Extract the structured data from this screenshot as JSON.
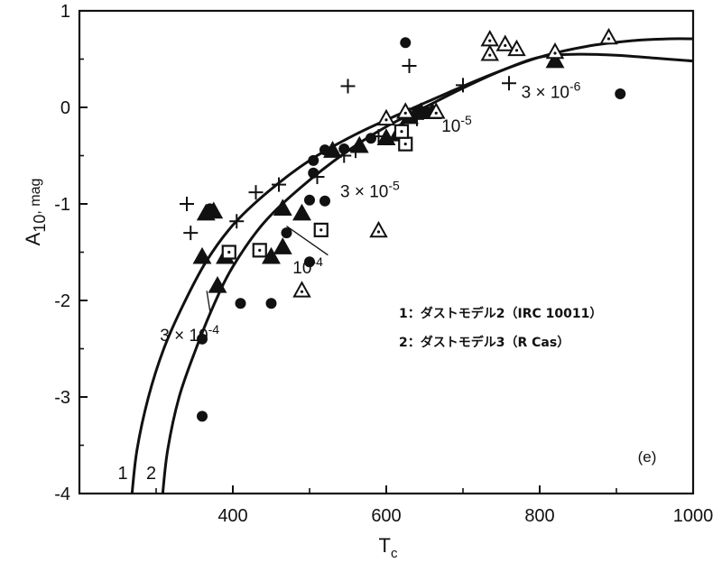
{
  "chart_data": {
    "type": "scatter",
    "panel_label": "(e)",
    "xlabel": {
      "main": "T",
      "sub": "c"
    },
    "ylabel": {
      "main": "A",
      "sub": "10",
      "unit": ", mag"
    },
    "xlim": [
      200,
      1000
    ],
    "ylim": [
      -4,
      1
    ],
    "x_ticks": [
      {
        "value": 400,
        "label": "400"
      },
      {
        "value": 600,
        "label": "600"
      },
      {
        "value": 800,
        "label": "800"
      },
      {
        "value": 1000,
        "label": "1000"
      }
    ],
    "y_ticks": [
      {
        "value": 1,
        "label": "1"
      },
      {
        "value": 0,
        "label": "0"
      },
      {
        "value": -1,
        "label": "-1"
      },
      {
        "value": -2,
        "label": "-2"
      },
      {
        "value": -3,
        "label": "-3"
      },
      {
        "value": -4,
        "label": "-4"
      }
    ],
    "curves": [
      {
        "label": "1",
        "points": [
          [
            268,
            -4.05
          ],
          [
            275,
            -3.55
          ],
          [
            290,
            -3.0
          ],
          [
            310,
            -2.5
          ],
          [
            335,
            -2.05
          ],
          [
            365,
            -1.6
          ],
          [
            400,
            -1.22
          ],
          [
            445,
            -0.88
          ],
          [
            500,
            -0.55
          ],
          [
            560,
            -0.28
          ],
          [
            620,
            -0.06
          ],
          [
            680,
            0.15
          ],
          [
            740,
            0.35
          ],
          [
            800,
            0.52
          ],
          [
            860,
            0.63
          ],
          [
            920,
            0.69
          ],
          [
            970,
            0.71
          ],
          [
            1000,
            0.71
          ]
        ]
      },
      {
        "label": "2",
        "points": [
          [
            308,
            -4.05
          ],
          [
            315,
            -3.55
          ],
          [
            330,
            -3.0
          ],
          [
            352,
            -2.5
          ],
          [
            375,
            -2.05
          ],
          [
            400,
            -1.65
          ],
          [
            440,
            -1.2
          ],
          [
            490,
            -0.82
          ],
          [
            550,
            -0.45
          ],
          [
            600,
            -0.2
          ],
          [
            650,
            0.0
          ],
          [
            700,
            0.2
          ],
          [
            750,
            0.38
          ],
          [
            800,
            0.52
          ],
          [
            850,
            0.55
          ],
          [
            900,
            0.54
          ],
          [
            950,
            0.51
          ],
          [
            1000,
            0.48
          ]
        ]
      }
    ],
    "curve_tags": [
      {
        "text": "1",
        "x": 250,
        "y": -3.85
      },
      {
        "text": "2",
        "x": 287,
        "y": -3.85
      }
    ],
    "series": [
      {
        "marker": "circle",
        "points": [
          [
            625,
            0.67
          ],
          [
            905,
            0.14
          ],
          [
            505,
            -0.55
          ],
          [
            505,
            -0.68
          ],
          [
            545,
            -0.43
          ],
          [
            520,
            -0.44
          ],
          [
            580,
            -0.32
          ],
          [
            620,
            -0.22
          ],
          [
            500,
            -0.96
          ],
          [
            520,
            -0.97
          ],
          [
            470,
            -1.3
          ],
          [
            500,
            -1.6
          ],
          [
            410,
            -2.03
          ],
          [
            450,
            -2.03
          ],
          [
            370,
            -1.05
          ],
          [
            360,
            -2.4
          ],
          [
            360,
            -3.2
          ],
          [
            640,
            -0.05
          ],
          [
            655,
            -0.05
          ]
        ]
      },
      {
        "marker": "plus",
        "points": [
          [
            630,
            0.43
          ],
          [
            550,
            0.22
          ],
          [
            700,
            0.23
          ],
          [
            760,
            0.25
          ],
          [
            340,
            -1.0
          ],
          [
            345,
            -1.3
          ],
          [
            405,
            -1.18
          ],
          [
            430,
            -0.88
          ],
          [
            460,
            -0.8
          ],
          [
            510,
            -0.72
          ],
          [
            545,
            -0.5
          ],
          [
            560,
            -0.45
          ],
          [
            590,
            -0.3
          ],
          [
            620,
            -0.3
          ],
          [
            640,
            -0.12
          ]
        ]
      },
      {
        "marker": "triangle-filled",
        "points": [
          [
            365,
            -1.1
          ],
          [
            375,
            -1.08
          ],
          [
            360,
            -1.55
          ],
          [
            390,
            -1.55
          ],
          [
            380,
            -1.85
          ],
          [
            450,
            -1.55
          ],
          [
            465,
            -1.45
          ],
          [
            465,
            -1.05
          ],
          [
            490,
            -1.1
          ],
          [
            530,
            -0.45
          ],
          [
            565,
            -0.4
          ],
          [
            600,
            -0.32
          ],
          [
            615,
            -0.28
          ],
          [
            630,
            -0.1
          ],
          [
            645,
            -0.05
          ],
          [
            660,
            -0.05
          ],
          [
            820,
            0.48
          ]
        ]
      },
      {
        "marker": "triangle-dot",
        "points": [
          [
            735,
            0.7
          ],
          [
            735,
            0.55
          ],
          [
            755,
            0.65
          ],
          [
            770,
            0.6
          ],
          [
            820,
            0.57
          ],
          [
            890,
            0.72
          ],
          [
            600,
            -0.12
          ],
          [
            625,
            -0.05
          ],
          [
            665,
            -0.05
          ],
          [
            590,
            -1.28
          ],
          [
            490,
            -1.9
          ]
        ]
      },
      {
        "marker": "square-dot",
        "points": [
          [
            395,
            -1.5
          ],
          [
            435,
            -1.48
          ],
          [
            515,
            -1.27
          ],
          [
            625,
            -0.38
          ],
          [
            620,
            -0.25
          ]
        ]
      }
    ],
    "annotations": [
      {
        "parts": [
          "3 × 10",
          "-6"
        ],
        "x": 776,
        "y": 0.1
      },
      {
        "parts": [
          "10",
          "-5"
        ],
        "x": 672,
        "y": -0.25
      },
      {
        "parts": [
          "3 × 10",
          "-5"
        ],
        "x": 540,
        "y": -0.93
      },
      {
        "parts": [
          "10",
          "-4"
        ],
        "x": 478,
        "y": -1.72
      },
      {
        "parts": [
          "3 × 10",
          "-4"
        ],
        "x": 305,
        "y": -2.42
      }
    ],
    "leader_lines": [
      [
        [
          470,
          -1.23
        ],
        [
          524,
          -1.53
        ]
      ],
      [
        [
          366,
          -1.9
        ],
        [
          371,
          -2.15
        ]
      ]
    ],
    "legend": [
      {
        "text": "1：ダストモデル2（IRC 10011）"
      },
      {
        "text": "2：ダストモデル3（R Cas）"
      }
    ]
  }
}
